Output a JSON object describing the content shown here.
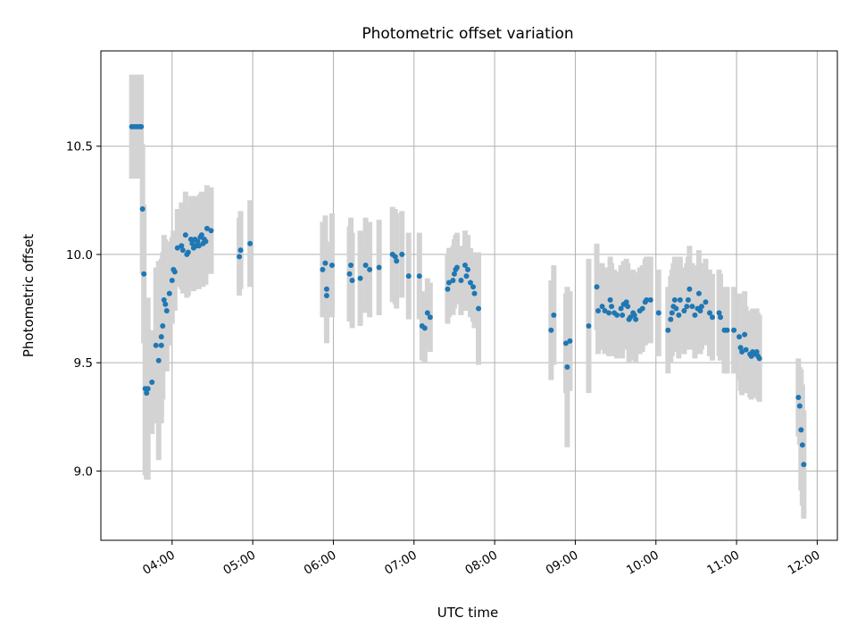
{
  "chart_data": {
    "type": "scatter",
    "title": "Photometric offset variation",
    "xlabel": "UTC time",
    "ylabel": "Photometric offset",
    "xlim": [
      "03:07",
      "12:15"
    ],
    "ylim": [
      8.68,
      10.94
    ],
    "xticks": [
      "04:00",
      "05:00",
      "06:00",
      "07:00",
      "08:00",
      "09:00",
      "10:00",
      "11:00",
      "12:00"
    ],
    "yticks": [
      9.0,
      9.5,
      10.0,
      10.5
    ],
    "grid": true,
    "marker_color": "#1f77b4",
    "errorbar_color": "#d3d3d3",
    "series": [
      {
        "points": [
          {
            "x": "03:30",
            "y": 10.59,
            "err": 0.24
          },
          {
            "x": "03:32",
            "y": 10.59,
            "err": 0.24
          },
          {
            "x": "03:34",
            "y": 10.59,
            "err": 0.24
          },
          {
            "x": "03:36",
            "y": 10.59,
            "err": 0.24
          },
          {
            "x": "03:37",
            "y": 10.59,
            "err": 0.24
          },
          {
            "x": "03:38",
            "y": 10.21,
            "err": 0.3
          },
          {
            "x": "03:39",
            "y": 9.91,
            "err": 0.32
          },
          {
            "x": "03:40",
            "y": 9.38,
            "err": 0.4
          },
          {
            "x": "03:41",
            "y": 9.36,
            "err": 0.4
          },
          {
            "x": "03:42",
            "y": 9.38,
            "err": 0.42
          },
          {
            "x": "03:45",
            "y": 9.41,
            "err": 0.24
          },
          {
            "x": "03:48",
            "y": 9.58,
            "err": 0.36
          },
          {
            "x": "03:50",
            "y": 9.51,
            "err": 0.46
          },
          {
            "x": "03:52",
            "y": 9.62,
            "err": 0.36
          },
          {
            "x": "03:52",
            "y": 9.58,
            "err": 0.36
          },
          {
            "x": "03:53",
            "y": 9.67,
            "err": 0.34
          },
          {
            "x": "03:54",
            "y": 9.79,
            "err": 0.3
          },
          {
            "x": "03:55",
            "y": 9.77,
            "err": 0.3
          },
          {
            "x": "03:56",
            "y": 9.74,
            "err": 0.28
          },
          {
            "x": "03:58",
            "y": 9.82,
            "err": 0.24
          },
          {
            "x": "04:00",
            "y": 9.88,
            "err": 0.2
          },
          {
            "x": "04:01",
            "y": 9.93,
            "err": 0.18
          },
          {
            "x": "04:02",
            "y": 9.92,
            "err": 0.18
          },
          {
            "x": "04:04",
            "y": 10.03,
            "err": 0.18
          },
          {
            "x": "04:07",
            "y": 10.04,
            "err": 0.2
          },
          {
            "x": "04:08",
            "y": 10.02,
            "err": 0.2
          },
          {
            "x": "04:10",
            "y": 10.09,
            "err": 0.2
          },
          {
            "x": "04:11",
            "y": 10.0,
            "err": 0.2
          },
          {
            "x": "04:12",
            "y": 10.01,
            "err": 0.2
          },
          {
            "x": "04:14",
            "y": 10.07,
            "err": 0.2
          },
          {
            "x": "04:15",
            "y": 10.05,
            "err": 0.2
          },
          {
            "x": "04:16",
            "y": 10.03,
            "err": 0.2
          },
          {
            "x": "04:17",
            "y": 10.07,
            "err": 0.2
          },
          {
            "x": "04:18",
            "y": 10.04,
            "err": 0.2
          },
          {
            "x": "04:19",
            "y": 10.06,
            "err": 0.2
          },
          {
            "x": "04:20",
            "y": 10.04,
            "err": 0.2
          },
          {
            "x": "04:21",
            "y": 10.08,
            "err": 0.2
          },
          {
            "x": "04:22",
            "y": 10.09,
            "err": 0.2
          },
          {
            "x": "04:23",
            "y": 10.05,
            "err": 0.2
          },
          {
            "x": "04:24",
            "y": 10.07,
            "err": 0.2
          },
          {
            "x": "04:25",
            "y": 10.06,
            "err": 0.2
          },
          {
            "x": "04:26",
            "y": 10.12,
            "err": 0.2
          },
          {
            "x": "04:29",
            "y": 10.11,
            "err": 0.2
          },
          {
            "x": "04:50",
            "y": 9.99,
            "err": 0.18
          },
          {
            "x": "04:51",
            "y": 10.02,
            "err": 0.18
          },
          {
            "x": "04:58",
            "y": 10.05,
            "err": 0.2
          },
          {
            "x": "05:52",
            "y": 9.93,
            "err": 0.22
          },
          {
            "x": "05:54",
            "y": 9.96,
            "err": 0.22
          },
          {
            "x": "05:55",
            "y": 9.84,
            "err": 0.22
          },
          {
            "x": "05:55",
            "y": 9.81,
            "err": 0.22
          },
          {
            "x": "05:59",
            "y": 9.95,
            "err": 0.24
          },
          {
            "x": "06:12",
            "y": 9.91,
            "err": 0.22
          },
          {
            "x": "06:13",
            "y": 9.95,
            "err": 0.22
          },
          {
            "x": "06:14",
            "y": 9.88,
            "err": 0.22
          },
          {
            "x": "06:20",
            "y": 9.89,
            "err": 0.22
          },
          {
            "x": "06:24",
            "y": 9.95,
            "err": 0.22
          },
          {
            "x": "06:27",
            "y": 9.93,
            "err": 0.22
          },
          {
            "x": "06:34",
            "y": 9.94,
            "err": 0.22
          },
          {
            "x": "06:44",
            "y": 10.0,
            "err": 0.22
          },
          {
            "x": "06:46",
            "y": 9.99,
            "err": 0.22
          },
          {
            "x": "06:47",
            "y": 9.97,
            "err": 0.22
          },
          {
            "x": "06:51",
            "y": 10.0,
            "err": 0.2
          },
          {
            "x": "06:56",
            "y": 9.9,
            "err": 0.2
          },
          {
            "x": "07:04",
            "y": 9.9,
            "err": 0.2
          },
          {
            "x": "07:06",
            "y": 9.67,
            "err": 0.16
          },
          {
            "x": "07:08",
            "y": 9.66,
            "err": 0.16
          },
          {
            "x": "07:10",
            "y": 9.73,
            "err": 0.16
          },
          {
            "x": "07:12",
            "y": 9.71,
            "err": 0.16
          },
          {
            "x": "07:25",
            "y": 9.84,
            "err": 0.16
          },
          {
            "x": "07:26",
            "y": 9.87,
            "err": 0.16
          },
          {
            "x": "07:29",
            "y": 9.88,
            "err": 0.16
          },
          {
            "x": "07:30",
            "y": 9.91,
            "err": 0.16
          },
          {
            "x": "07:31",
            "y": 9.93,
            "err": 0.16
          },
          {
            "x": "07:32",
            "y": 9.94,
            "err": 0.16
          },
          {
            "x": "07:35",
            "y": 9.88,
            "err": 0.16
          },
          {
            "x": "07:38",
            "y": 9.95,
            "err": 0.16
          },
          {
            "x": "07:39",
            "y": 9.9,
            "err": 0.16
          },
          {
            "x": "07:40",
            "y": 9.93,
            "err": 0.16
          },
          {
            "x": "07:42",
            "y": 9.87,
            "err": 0.16
          },
          {
            "x": "07:44",
            "y": 9.85,
            "err": 0.16
          },
          {
            "x": "07:45",
            "y": 9.82,
            "err": 0.16
          },
          {
            "x": "07:48",
            "y": 9.75,
            "err": 0.26
          },
          {
            "x": "08:42",
            "y": 9.65,
            "err": 0.23
          },
          {
            "x": "08:44",
            "y": 9.72,
            "err": 0.23
          },
          {
            "x": "08:53",
            "y": 9.59,
            "err": 0.23
          },
          {
            "x": "08:54",
            "y": 9.48,
            "err": 0.37
          },
          {
            "x": "08:56",
            "y": 9.6,
            "err": 0.23
          },
          {
            "x": "09:10",
            "y": 9.67,
            "err": 0.31
          },
          {
            "x": "09:16",
            "y": 9.85,
            "err": 0.2
          },
          {
            "x": "09:17",
            "y": 9.74,
            "err": 0.2
          },
          {
            "x": "09:20",
            "y": 9.76,
            "err": 0.2
          },
          {
            "x": "09:22",
            "y": 9.74,
            "err": 0.2
          },
          {
            "x": "09:25",
            "y": 9.73,
            "err": 0.2
          },
          {
            "x": "09:26",
            "y": 9.79,
            "err": 0.2
          },
          {
            "x": "09:27",
            "y": 9.76,
            "err": 0.2
          },
          {
            "x": "09:29",
            "y": 9.73,
            "err": 0.2
          },
          {
            "x": "09:31",
            "y": 9.72,
            "err": 0.2
          },
          {
            "x": "09:34",
            "y": 9.75,
            "err": 0.2
          },
          {
            "x": "09:35",
            "y": 9.72,
            "err": 0.2
          },
          {
            "x": "09:36",
            "y": 9.77,
            "err": 0.2
          },
          {
            "x": "09:38",
            "y": 9.78,
            "err": 0.2
          },
          {
            "x": "09:39",
            "y": 9.76,
            "err": 0.2
          },
          {
            "x": "09:40",
            "y": 9.7,
            "err": 0.2
          },
          {
            "x": "09:41",
            "y": 9.71,
            "err": 0.2
          },
          {
            "x": "09:43",
            "y": 9.73,
            "err": 0.2
          },
          {
            "x": "09:44",
            "y": 9.72,
            "err": 0.2
          },
          {
            "x": "09:45",
            "y": 9.7,
            "err": 0.2
          },
          {
            "x": "09:48",
            "y": 9.74,
            "err": 0.2
          },
          {
            "x": "09:50",
            "y": 9.75,
            "err": 0.2
          },
          {
            "x": "09:52",
            "y": 9.78,
            "err": 0.2
          },
          {
            "x": "09:53",
            "y": 9.79,
            "err": 0.2
          },
          {
            "x": "09:56",
            "y": 9.79,
            "err": 0.2
          },
          {
            "x": "10:02",
            "y": 9.73,
            "err": 0.2
          },
          {
            "x": "10:09",
            "y": 9.65,
            "err": 0.2
          },
          {
            "x": "10:11",
            "y": 9.7,
            "err": 0.2
          },
          {
            "x": "10:12",
            "y": 9.73,
            "err": 0.2
          },
          {
            "x": "10:13",
            "y": 9.76,
            "err": 0.2
          },
          {
            "x": "10:14",
            "y": 9.79,
            "err": 0.2
          },
          {
            "x": "10:15",
            "y": 9.75,
            "err": 0.2
          },
          {
            "x": "10:17",
            "y": 9.72,
            "err": 0.2
          },
          {
            "x": "10:18",
            "y": 9.79,
            "err": 0.2
          },
          {
            "x": "10:21",
            "y": 9.74,
            "err": 0.2
          },
          {
            "x": "10:23",
            "y": 9.76,
            "err": 0.2
          },
          {
            "x": "10:24",
            "y": 9.79,
            "err": 0.2
          },
          {
            "x": "10:25",
            "y": 9.84,
            "err": 0.2
          },
          {
            "x": "10:27",
            "y": 9.76,
            "err": 0.2
          },
          {
            "x": "10:29",
            "y": 9.72,
            "err": 0.2
          },
          {
            "x": "10:31",
            "y": 9.75,
            "err": 0.2
          },
          {
            "x": "10:32",
            "y": 9.82,
            "err": 0.2
          },
          {
            "x": "10:33",
            "y": 9.74,
            "err": 0.2
          },
          {
            "x": "10:34",
            "y": 9.76,
            "err": 0.2
          },
          {
            "x": "10:37",
            "y": 9.78,
            "err": 0.2
          },
          {
            "x": "10:40",
            "y": 9.73,
            "err": 0.2
          },
          {
            "x": "10:42",
            "y": 9.71,
            "err": 0.2
          },
          {
            "x": "10:47",
            "y": 9.73,
            "err": 0.2
          },
          {
            "x": "10:48",
            "y": 9.71,
            "err": 0.2
          },
          {
            "x": "10:51",
            "y": 9.65,
            "err": 0.2
          },
          {
            "x": "10:53",
            "y": 9.65,
            "err": 0.2
          },
          {
            "x": "10:58",
            "y": 9.65,
            "err": 0.2
          },
          {
            "x": "11:02",
            "y": 9.62,
            "err": 0.2
          },
          {
            "x": "11:03",
            "y": 9.57,
            "err": 0.2
          },
          {
            "x": "11:04",
            "y": 9.55,
            "err": 0.2
          },
          {
            "x": "11:06",
            "y": 9.63,
            "err": 0.2
          },
          {
            "x": "11:07",
            "y": 9.56,
            "err": 0.2
          },
          {
            "x": "11:10",
            "y": 9.54,
            "err": 0.2
          },
          {
            "x": "11:11",
            "y": 9.53,
            "err": 0.2
          },
          {
            "x": "11:12",
            "y": 9.55,
            "err": 0.2
          },
          {
            "x": "11:13",
            "y": 9.54,
            "err": 0.2
          },
          {
            "x": "11:15",
            "y": 9.55,
            "err": 0.2
          },
          {
            "x": "11:16",
            "y": 9.53,
            "err": 0.2
          },
          {
            "x": "11:17",
            "y": 9.52,
            "err": 0.2
          },
          {
            "x": "11:46",
            "y": 9.34,
            "err": 0.18
          },
          {
            "x": "11:47",
            "y": 9.3,
            "err": 0.18
          },
          {
            "x": "11:48",
            "y": 9.19,
            "err": 0.28
          },
          {
            "x": "11:49",
            "y": 9.12,
            "err": 0.28
          },
          {
            "x": "11:50",
            "y": 9.03,
            "err": 0.25
          }
        ]
      }
    ]
  }
}
